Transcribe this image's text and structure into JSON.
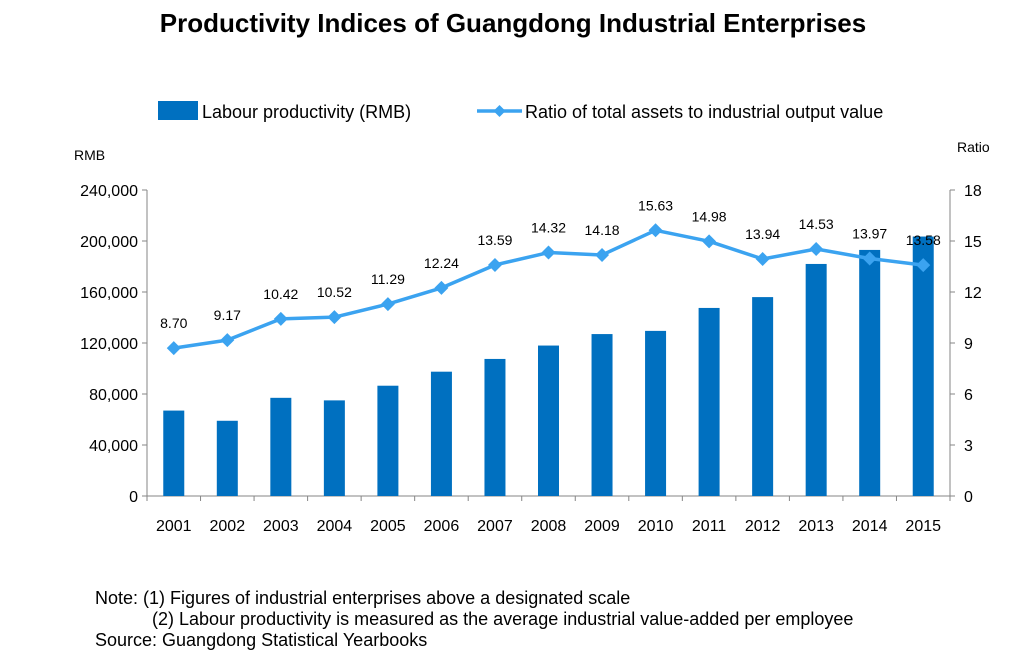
{
  "chart_data": {
    "type": "bar",
    "title": "Productivity Indices of Guangdong Industrial Enterprises",
    "categories": [
      "2001",
      "2002",
      "2003",
      "2004",
      "2005",
      "2006",
      "2007",
      "2008",
      "2009",
      "2010",
      "2011",
      "2012",
      "2013",
      "2014",
      "2015"
    ],
    "series": [
      {
        "name": "Labour productivity (RMB)",
        "type": "bar",
        "axis": "left",
        "color": "#0070C0",
        "values": [
          67000,
          59000,
          77000,
          75000,
          86500,
          97500,
          107500,
          118000,
          127000,
          129500,
          147500,
          156000,
          182000,
          193000,
          203500
        ]
      },
      {
        "name": "Ratio of total assets to industrial output value",
        "type": "line",
        "axis": "right",
        "color": "#3BA3F0",
        "marker": "diamond",
        "values": [
          8.7,
          9.17,
          10.42,
          10.52,
          11.29,
          12.24,
          13.59,
          14.32,
          14.18,
          15.63,
          14.98,
          13.94,
          14.53,
          13.97,
          13.58
        ],
        "labels": [
          "8.70",
          "9.17",
          "10.42",
          "10.52",
          "11.29",
          "12.24",
          "13.59",
          "14.32",
          "14.18",
          "15.63",
          "14.98",
          "13.94",
          "14.53",
          "13.97",
          "13.58"
        ]
      }
    ],
    "y_left": {
      "unit_label": "RMB",
      "range": [
        0,
        240000
      ],
      "ticks": [
        0,
        40000,
        80000,
        120000,
        160000,
        200000,
        240000
      ],
      "tick_labels": [
        "0",
        "40,000",
        "80,000",
        "120,000",
        "160,000",
        "200,000",
        "240,000"
      ]
    },
    "y_right": {
      "unit_label": "Ratio",
      "range": [
        0,
        18
      ],
      "ticks": [
        0,
        3,
        6,
        9,
        12,
        15,
        18
      ],
      "tick_labels": [
        "0",
        "3",
        "6",
        "9",
        "12",
        "15",
        "18"
      ]
    },
    "grid": false,
    "legend_position": "top"
  },
  "notes": {
    "line1": "Note: (1) Figures of industrial enterprises above a designated scale",
    "line2": "(2) Labour productivity is measured as the average industrial value-added per employee",
    "line3": "Source: Guangdong  Statistical Yearbooks"
  }
}
